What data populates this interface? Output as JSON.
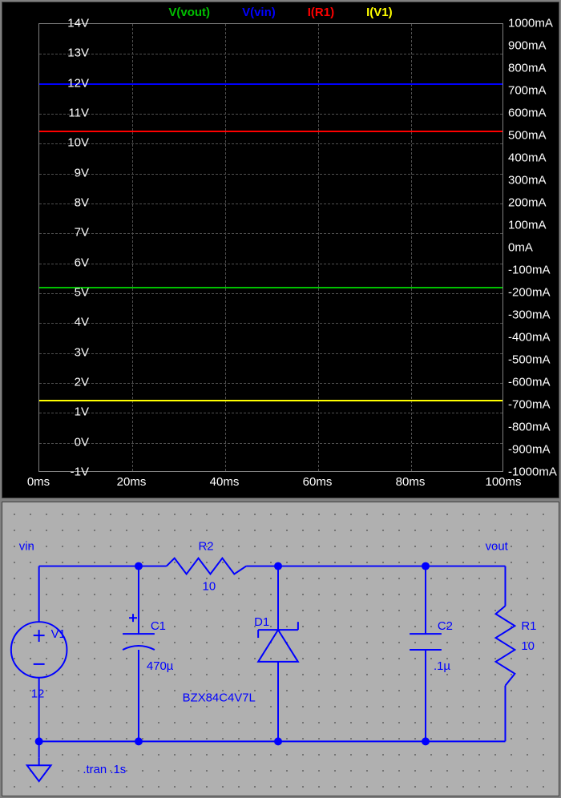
{
  "waveform": {
    "legend": [
      {
        "label": "V(vout)",
        "color": "#00c000"
      },
      {
        "label": "V(vin)",
        "color": "#0000ff"
      },
      {
        "label": "I(R1)",
        "color": "#ff0000"
      },
      {
        "label": "I(V1)",
        "color": "#ffff00"
      }
    ],
    "y_left": {
      "min": -1,
      "max": 14,
      "step": 1,
      "unit": "V",
      "color": "#ffffff"
    },
    "y_right": {
      "min": -1000,
      "max": 1000,
      "ticks": [
        1000,
        900,
        800,
        700,
        600,
        500,
        400,
        300,
        200,
        100,
        0,
        -100,
        -200,
        -300,
        -400,
        -500,
        -600,
        -700,
        -800,
        -900,
        -1000
      ],
      "unit": "mA",
      "color": "#ffffff"
    },
    "x_axis": {
      "min": 0,
      "max": 100,
      "step": 20,
      "unit": "ms",
      "color": "#ffffff"
    },
    "grid_color": "#505050",
    "background": "#000000",
    "traces": [
      {
        "name": "vin",
        "color": "#0000ff",
        "axis": "left",
        "value": 12.0
      },
      {
        "name": "vout",
        "color": "#00c000",
        "axis": "left",
        "value": 5.2
      },
      {
        "name": "ir1",
        "color": "#ff0000",
        "axis": "right",
        "value": 520
      },
      {
        "name": "iv1",
        "color": "#ffff00",
        "axis": "right",
        "value": -680
      }
    ]
  },
  "schematic": {
    "background": "#b0b0b0",
    "wire_color": "#0000ff",
    "text_color": "#0000ff",
    "dot_color": "#606060",
    "nets": {
      "vin": "vin",
      "vout": "vout"
    },
    "components": {
      "V1": {
        "ref": "V1",
        "value": "12"
      },
      "C1": {
        "ref": "C1",
        "value": "470µ"
      },
      "R2": {
        "ref": "R2",
        "value": "10"
      },
      "D1": {
        "ref": "D1",
        "model": "BZX84C4V7L"
      },
      "C2": {
        "ref": "C2",
        "value": ".1µ"
      },
      "R1": {
        "ref": "R1",
        "value": "10"
      }
    },
    "directive": ".tran .1s"
  }
}
